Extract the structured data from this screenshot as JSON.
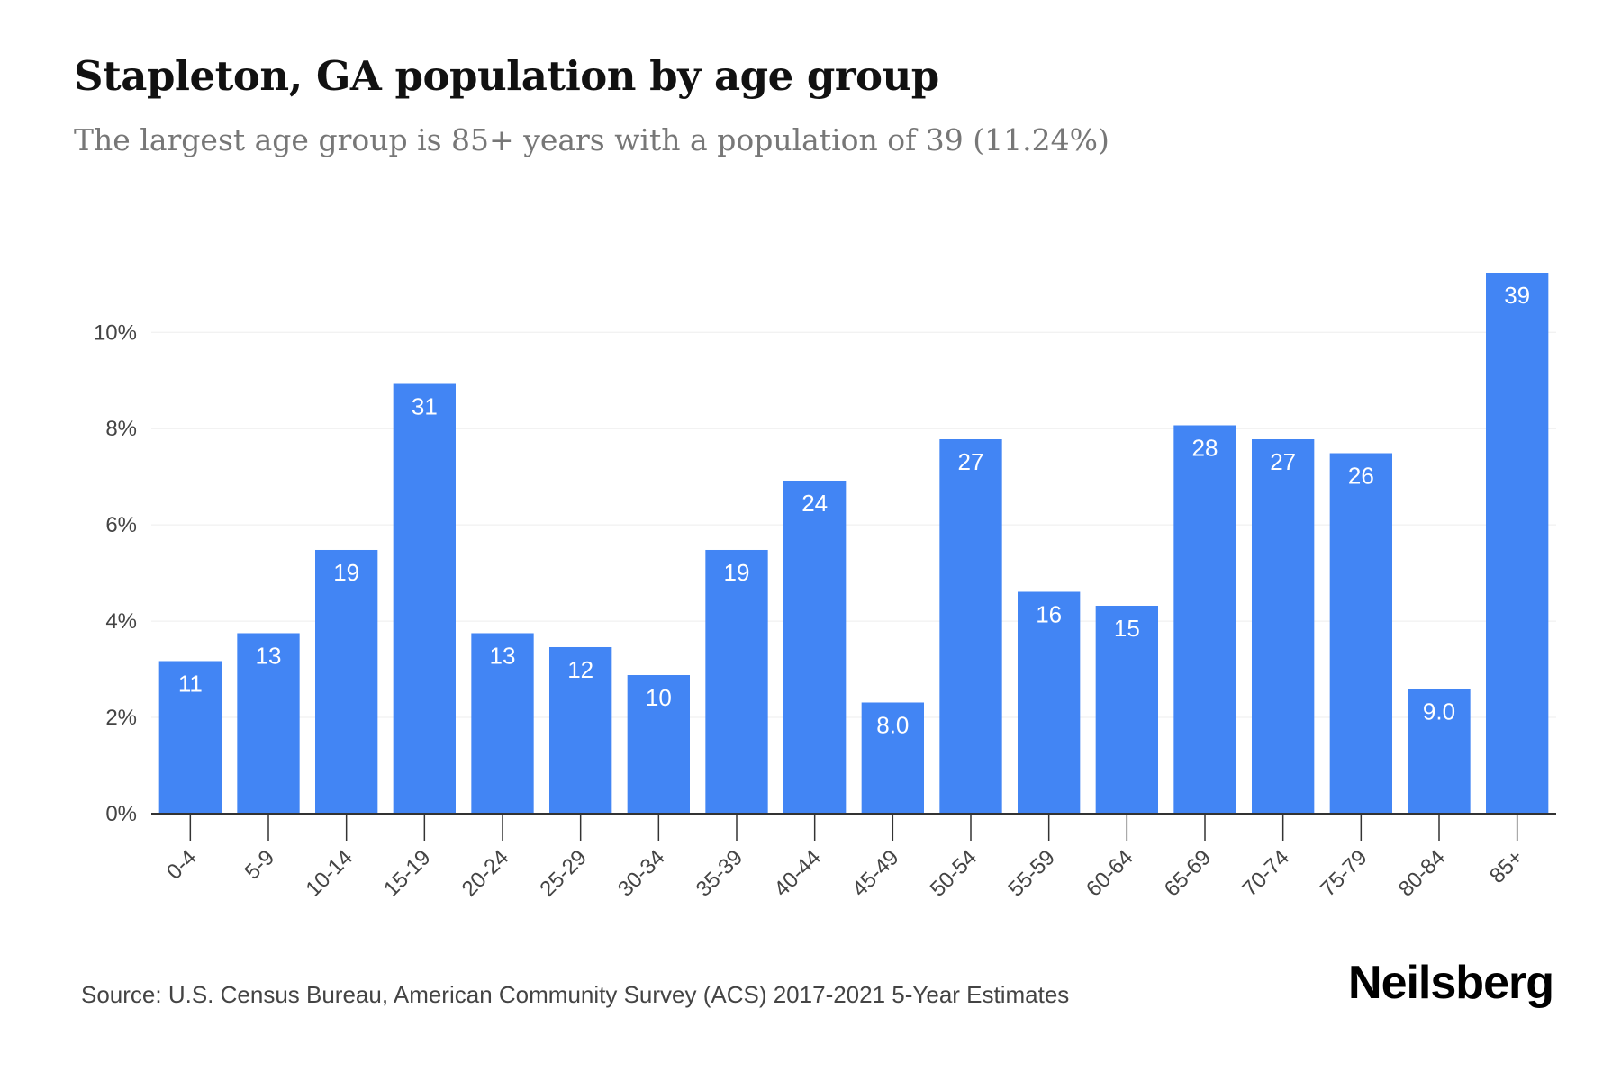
{
  "title": "Stapleton, GA population by age group",
  "subtitle": "The largest age group is 85+ years with a population of 39 (11.24%)",
  "source": "Source: U.S. Census Bureau, American Community Survey (ACS) 2017-2021 5-Year Estimates",
  "logo": "Neilsberg",
  "colors": {
    "bar": "#4285f4",
    "bar_label": "#ffffff",
    "grid": "#eeeeee",
    "axis": "#333333",
    "tick_text": "#444444"
  },
  "chart_data": {
    "type": "bar",
    "categories": [
      "0-4",
      "5-9",
      "10-14",
      "15-19",
      "20-24",
      "25-29",
      "30-34",
      "35-39",
      "40-44",
      "45-49",
      "50-54",
      "55-59",
      "60-64",
      "65-69",
      "70-74",
      "75-79",
      "80-84",
      "85+"
    ],
    "values": [
      3.17,
      3.75,
      5.48,
      8.93,
      3.75,
      3.46,
      2.88,
      5.48,
      6.92,
      2.31,
      7.78,
      4.61,
      4.32,
      8.07,
      7.78,
      7.49,
      2.59,
      11.24
    ],
    "data_labels": [
      "11",
      "13",
      "19",
      "31",
      "13",
      "12",
      "10",
      "19",
      "24",
      "8.0",
      "27",
      "16",
      "15",
      "28",
      "27",
      "26",
      "9.0",
      "39"
    ],
    "yticks": [
      "0%",
      "2%",
      "4%",
      "6%",
      "8%",
      "10%"
    ],
    "ytick_values": [
      0,
      2,
      4,
      6,
      8,
      10
    ],
    "ylim": [
      0,
      11.24
    ],
    "grid": true
  }
}
